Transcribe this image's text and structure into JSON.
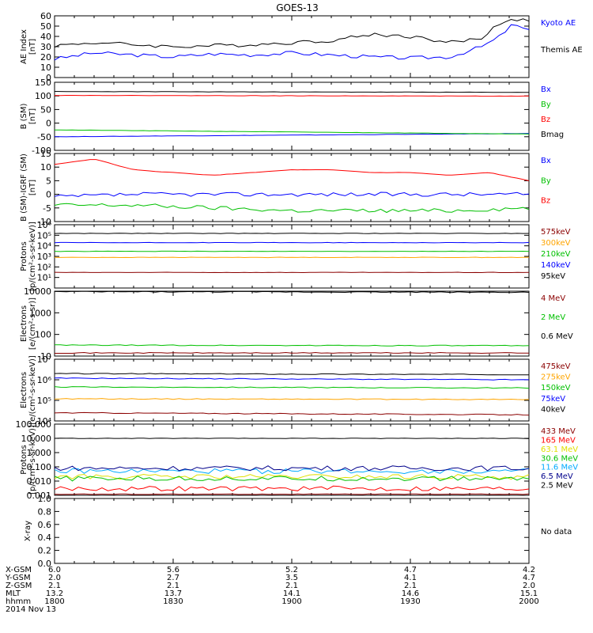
{
  "title": "GOES-13",
  "footer": {
    "row_labels": [
      "X-GSM",
      "Y-GSM",
      "Z-GSM",
      "MLT",
      "hhmm",
      "2014 Nov 13"
    ],
    "columns": [
      [
        "6.0",
        "2.0",
        "2.1",
        "13.2",
        "1800"
      ],
      [
        "5.6",
        "2.7",
        "2.1",
        "13.7",
        "1830"
      ],
      [
        "5.2",
        "3.5",
        "2.1",
        "14.1",
        "1900"
      ],
      [
        "4.7",
        "4.1",
        "2.1",
        "14.6",
        "1930"
      ],
      [
        "4.2",
        "4.7",
        "2.0",
        "15.1",
        "2000"
      ]
    ]
  },
  "chart_data": [
    {
      "type": "line",
      "panel": "ae",
      "ylabel": [
        "AE Index",
        "[nT]"
      ],
      "ylim": [
        0,
        60
      ],
      "yscale": "linear",
      "yticks": [
        "0",
        "10",
        "20",
        "30",
        "40",
        "50",
        "60"
      ],
      "xlim": [
        "18:00",
        "20:00"
      ],
      "series": [
        {
          "name": "Kyoto AE",
          "color": "#0000ff",
          "x": [
            "18:00",
            "18:10",
            "18:20",
            "18:30",
            "18:40",
            "18:50",
            "19:00",
            "19:10",
            "19:20",
            "19:30",
            "19:40",
            "19:48",
            "19:52",
            "19:56",
            "20:00"
          ],
          "y": [
            18,
            24,
            22,
            20,
            23,
            22,
            24,
            22,
            20,
            19,
            20,
            30,
            38,
            52,
            45
          ]
        },
        {
          "name": "Themis AE",
          "color": "#000000",
          "x": [
            "18:00",
            "18:10",
            "18:20",
            "18:30",
            "18:40",
            "18:50",
            "19:00",
            "19:10",
            "19:20",
            "19:30",
            "19:40",
            "19:48",
            "19:52",
            "19:56",
            "20:00"
          ],
          "y": [
            31,
            34,
            32,
            30,
            31,
            32,
            34,
            36,
            42,
            40,
            34,
            38,
            52,
            57,
            55
          ]
        }
      ]
    },
    {
      "type": "line",
      "panel": "bsm",
      "ylabel": [
        "B (SM)",
        "[nT]"
      ],
      "ylim": [
        -100,
        150
      ],
      "yscale": "linear",
      "yticks": [
        "-100",
        "-50",
        "0",
        "50",
        "100",
        "150"
      ],
      "xlim": [
        "18:00",
        "20:00"
      ],
      "series": [
        {
          "name": "Bx",
          "color": "#0000ff",
          "x": [
            "18:00",
            "20:00"
          ],
          "y": [
            -50,
            -38
          ]
        },
        {
          "name": "By",
          "color": "#00c000",
          "x": [
            "18:00",
            "20:00"
          ],
          "y": [
            -25,
            -40
          ]
        },
        {
          "name": "Bz",
          "color": "#ff0000",
          "x": [
            "18:00",
            "20:00"
          ],
          "y": [
            102,
            99
          ]
        },
        {
          "name": "Bmag",
          "color": "#000000",
          "x": [
            "18:00",
            "20:00"
          ],
          "y": [
            116,
            113
          ]
        }
      ]
    },
    {
      "type": "line",
      "panel": "bigrf",
      "ylabel": [
        "B (SM)-IGRF (SM)",
        "[nT]"
      ],
      "ylim": [
        -10,
        15
      ],
      "yscale": "linear",
      "yticks": [
        "-10",
        "-5",
        "0",
        "5",
        "10",
        "15"
      ],
      "xlim": [
        "18:00",
        "20:00"
      ],
      "series": [
        {
          "name": "Bx",
          "color": "#0000ff",
          "x": [
            "18:00",
            "18:20",
            "18:40",
            "19:00",
            "19:20",
            "19:40",
            "20:00"
          ],
          "y": [
            -1,
            0,
            0,
            0,
            0,
            0,
            0
          ]
        },
        {
          "name": "By",
          "color": "#00c000",
          "x": [
            "18:00",
            "18:20",
            "18:40",
            "19:00",
            "19:20",
            "19:40",
            "20:00"
          ],
          "y": [
            -4,
            -4,
            -5,
            -6,
            -6,
            -6,
            -5
          ]
        },
        {
          "name": "Bz",
          "color": "#ff0000",
          "x": [
            "18:00",
            "18:10",
            "18:20",
            "18:30",
            "18:40",
            "18:50",
            "19:00",
            "19:10",
            "19:20",
            "19:30",
            "19:40",
            "19:50",
            "20:00"
          ],
          "y": [
            11,
            13,
            9,
            8,
            7,
            8,
            9,
            9,
            8,
            8,
            7,
            8,
            5
          ]
        }
      ]
    },
    {
      "type": "line",
      "panel": "protons_low",
      "ylabel": [
        "Protons",
        "[p/(cm²-s-sr-keV)]"
      ],
      "ylim": [
        1,
        1000000
      ],
      "yscale": "log",
      "yticks": [
        "10¹",
        "10²",
        "10³",
        "10⁴",
        "10⁵",
        "10⁶"
      ],
      "xlim": [
        "18:00",
        "20:00"
      ],
      "series": [
        {
          "name": "575keV",
          "color": "#8b0000",
          "x": [
            "18:00",
            "20:00"
          ],
          "y": [
            30,
            30
          ]
        },
        {
          "name": "300keV",
          "color": "#ffa500",
          "x": [
            "18:00",
            "20:00"
          ],
          "y": [
            800,
            800
          ]
        },
        {
          "name": "210keV",
          "color": "#00c000",
          "x": [
            "18:00",
            "20:00"
          ],
          "y": [
            3000,
            3000
          ]
        },
        {
          "name": "140keV",
          "color": "#0000ff",
          "x": [
            "18:00",
            "20:00"
          ],
          "y": [
            20000,
            20000
          ]
        },
        {
          "name": "95keV",
          "color": "#000000",
          "x": [
            "18:00",
            "20:00"
          ],
          "y": [
            150000,
            150000
          ]
        }
      ]
    },
    {
      "type": "line",
      "panel": "electrons_mev",
      "ylabel": [
        "Electrons",
        "[e/(cm²-s-sr)]"
      ],
      "ylim": [
        10,
        10000
      ],
      "yscale": "log",
      "yticks": [
        "10",
        "100",
        "1000",
        "10000"
      ],
      "xlim": [
        "18:00",
        "20:00"
      ],
      "series": [
        {
          "name": "4 MeV",
          "color": "#8b0000",
          "x": [
            "18:00",
            "20:00"
          ],
          "y": [
            14,
            14
          ]
        },
        {
          "name": "2 MeV",
          "color": "#00c000",
          "x": [
            "18:00",
            "20:00"
          ],
          "y": [
            32,
            30
          ]
        },
        {
          "name": "0.6 MeV",
          "color": "#000000",
          "x": [
            "18:00",
            "20:00"
          ],
          "y": [
            9500,
            9000
          ]
        }
      ]
    },
    {
      "type": "line",
      "panel": "electrons_kev",
      "ylabel": [
        "Electrons",
        "[e/(cm²-s-sr-keV)]"
      ],
      "ylim": [
        10000,
        10000000
      ],
      "yscale": "log",
      "yticks": [
        "10⁴",
        "10⁵",
        "10⁶",
        "10⁷"
      ],
      "xlim": [
        "18:00",
        "20:00"
      ],
      "series": [
        {
          "name": "475keV",
          "color": "#8b0000",
          "x": [
            "18:00",
            "20:00"
          ],
          "y": [
            25000,
            20000
          ]
        },
        {
          "name": "275keV",
          "color": "#ffa500",
          "x": [
            "18:00",
            "20:00"
          ],
          "y": [
            120000,
            110000
          ]
        },
        {
          "name": "150keV",
          "color": "#00c000",
          "x": [
            "18:00",
            "20:00"
          ],
          "y": [
            450000,
            400000
          ]
        },
        {
          "name": "75keV",
          "color": "#0000ff",
          "x": [
            "18:00",
            "20:00"
          ],
          "y": [
            1200000,
            1000000
          ]
        },
        {
          "name": "40keV",
          "color": "#000000",
          "x": [
            "18:00",
            "20:00"
          ],
          "y": [
            2000000,
            1800000
          ]
        }
      ]
    },
    {
      "type": "line",
      "panel": "protons_high",
      "ylabel": [
        "Protons",
        "[p/(cm²-s-sr-keV)]"
      ],
      "ylim": [
        0.001,
        100
      ],
      "yscale": "log",
      "yticks": [
        "0.001",
        "0.010",
        "0.100",
        "1.000",
        "10.000",
        "100.000"
      ],
      "xlim": [
        "18:00",
        "20:00"
      ],
      "series": [
        {
          "name": "433 MeV",
          "color": "#8b0000",
          "x": [
            "18:00",
            "20:00"
          ],
          "y": [
            0.0012,
            0.0012
          ]
        },
        {
          "name": "165 MeV",
          "color": "#ff0000",
          "x": [
            "18:00",
            "20:00"
          ],
          "y": [
            0.003,
            0.003
          ]
        },
        {
          "name": "63.1 MeV",
          "color": "#e0e000",
          "x": [
            "18:00",
            "20:00"
          ],
          "y": [
            0.02,
            0.02
          ]
        },
        {
          "name": "30.6 MeV",
          "color": "#00c000",
          "x": [
            "18:00",
            "20:00"
          ],
          "y": [
            0.015,
            0.015
          ]
        },
        {
          "name": "11.6 MeV",
          "color": "#00aaff",
          "x": [
            "18:00",
            "20:00"
          ],
          "y": [
            0.05,
            0.05
          ]
        },
        {
          "name": "6.5 MeV",
          "color": "#00008b",
          "x": [
            "18:00",
            "20:00"
          ],
          "y": [
            0.08,
            0.08
          ]
        },
        {
          "name": "2.5 MeV",
          "color": "#000000",
          "x": [
            "18:00",
            "20:00"
          ],
          "y": [
            10,
            10
          ]
        }
      ]
    },
    {
      "type": "line",
      "panel": "xray",
      "ylabel": [
        "X-ray"
      ],
      "ylim": [
        0,
        1
      ],
      "yscale": "linear",
      "yticks": [
        "0.0",
        "0.2",
        "0.4",
        "0.6",
        "0.8",
        "1.0"
      ],
      "xlim": [
        "18:00",
        "20:00"
      ],
      "series": [],
      "annotation": "No data"
    }
  ]
}
